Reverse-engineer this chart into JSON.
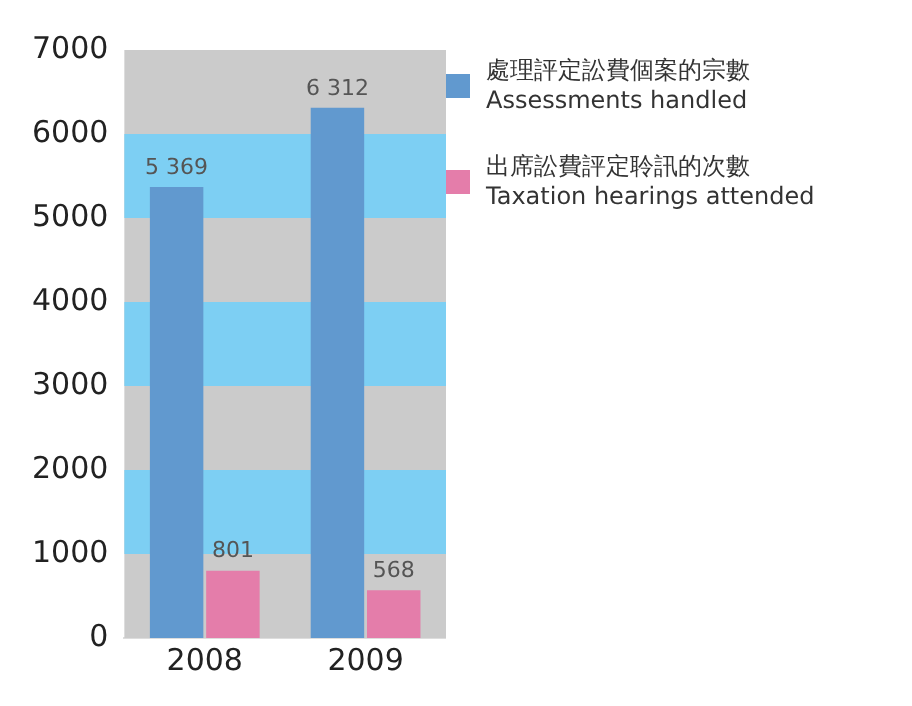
{
  "chart_data": {
    "type": "bar",
    "categories": [
      "2008",
      "2009"
    ],
    "series": [
      {
        "name": "處理評定訟費個案的宗數\nAssessments handled",
        "color": "#6199cf",
        "values": [
          5369,
          6312
        ],
        "value_labels": [
          "5 369",
          "6 312"
        ]
      },
      {
        "name": "出席訟費評定聆訊的次數\nTaxation hearings attended",
        "color": "#e47daa",
        "values": [
          801,
          568
        ],
        "value_labels": [
          "801",
          "568"
        ]
      }
    ],
    "ylim": [
      0,
      7000
    ],
    "yticks": [
      0,
      1000,
      2000,
      3000,
      4000,
      5000,
      6000,
      7000
    ],
    "bands": [
      {
        "axis": "y",
        "from": 1000,
        "to": 2000,
        "color": "#7dcff3"
      },
      {
        "axis": "y",
        "from": 3000,
        "to": 4000,
        "color": "#7dcff3"
      },
      {
        "axis": "y",
        "from": 5000,
        "to": 6000,
        "color": "#7dcff3"
      }
    ],
    "grid": false,
    "legend": "right"
  }
}
